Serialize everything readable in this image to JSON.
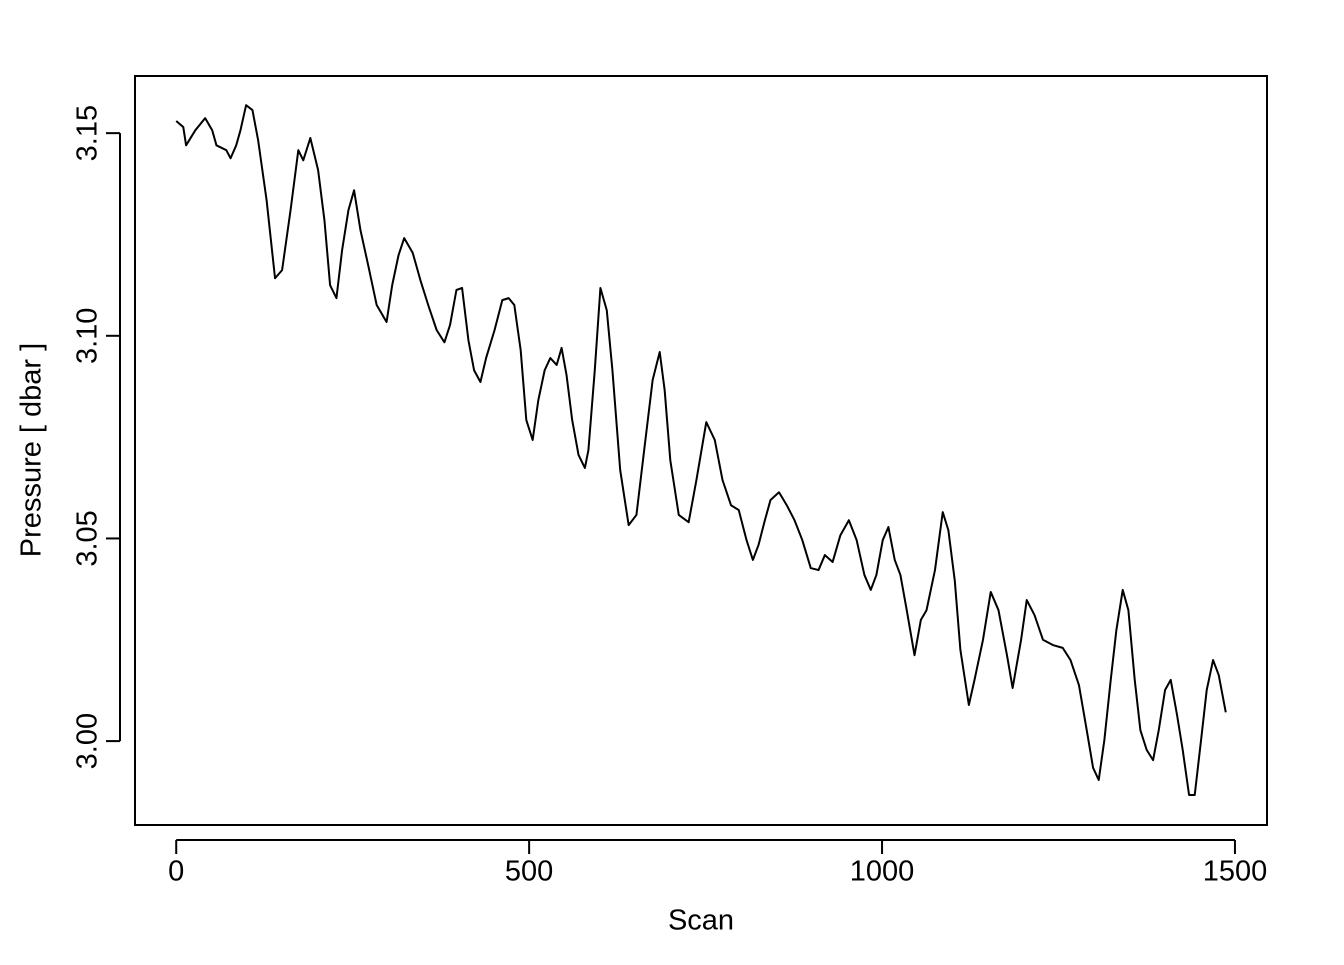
{
  "chart_data": {
    "type": "line",
    "x_label": "Scan",
    "y_label": "Pressure [ dbar ]",
    "color": "#000000",
    "xlim": [
      -58.4,
      1545.4
    ],
    "ylim": [
      2.9793,
      3.1641
    ],
    "xticks": [
      0,
      500,
      1000,
      1500
    ],
    "yticks": [
      {
        "value": 3,
        "label": "3.00"
      },
      3.05,
      {
        "value": 3.1,
        "label": "3.10"
      },
      3.15
    ],
    "x": [
      0,
      10,
      14,
      27,
      41,
      51,
      57,
      71,
      77,
      85,
      91,
      99,
      108,
      116,
      128,
      140,
      150,
      162,
      173,
      180,
      190,
      201,
      210,
      218,
      227,
      235,
      244,
      252,
      261,
      272,
      284,
      298,
      306,
      315,
      323,
      335,
      346,
      357,
      369,
      380,
      388,
      397,
      405,
      414,
      422,
      431,
      439,
      451,
      462,
      471,
      479,
      488,
      496,
      505,
      513,
      522,
      530,
      539,
      546,
      553,
      561,
      570,
      579,
      584,
      593,
      601,
      610,
      618,
      629,
      641,
      652,
      663,
      675,
      685,
      692,
      700,
      712,
      726,
      737,
      751,
      763,
      774,
      786,
      797,
      808,
      817,
      825,
      834,
      842,
      854,
      865,
      876,
      887,
      899,
      910,
      919,
      930,
      941,
      953,
      964,
      975,
      984,
      992,
      1001,
      1009,
      1018,
      1026,
      1035,
      1046,
      1055,
      1063,
      1075,
      1086,
      1094,
      1103,
      1111,
      1123,
      1131,
      1143,
      1154,
      1165,
      1177,
      1185,
      1197,
      1205,
      1216,
      1228,
      1242,
      1256,
      1267,
      1279,
      1290,
      1299,
      1307,
      1315,
      1324,
      1332,
      1341,
      1349,
      1358,
      1366,
      1375,
      1384,
      1392,
      1401,
      1409,
      1418,
      1426,
      1435,
      1443,
      1452,
      1460,
      1469,
      1477,
      1487
    ],
    "values": [
      3.153,
      3.1515,
      3.147,
      3.1507,
      3.1537,
      3.1507,
      3.147,
      3.1458,
      3.1438,
      3.147,
      3.1507,
      3.1569,
      3.1557,
      3.1483,
      3.1335,
      3.1142,
      3.1162,
      3.131,
      3.1458,
      3.1433,
      3.1488,
      3.1409,
      3.1285,
      3.1125,
      3.1093,
      3.1211,
      3.131,
      3.1359,
      3.1261,
      3.1174,
      3.1076,
      3.1034,
      3.1125,
      3.1199,
      3.1241,
      3.1205,
      3.1137,
      3.1076,
      3.1014,
      3.0984,
      3.1027,
      3.1113,
      3.1118,
      3.0989,
      3.0915,
      3.0886,
      3.0945,
      3.1014,
      3.1088,
      3.1093,
      3.1076,
      3.0965,
      3.0792,
      3.0743,
      3.0841,
      3.0915,
      3.0945,
      3.0928,
      3.097,
      3.0903,
      3.0792,
      3.0706,
      3.0674,
      3.0718,
      3.0915,
      3.1118,
      3.1063,
      3.0915,
      3.0669,
      3.0533,
      3.0558,
      3.0718,
      3.0891,
      3.096,
      3.0866,
      3.0693,
      3.0558,
      3.054,
      3.0644,
      3.0787,
      3.0743,
      3.0644,
      3.0582,
      3.057,
      3.0496,
      3.0447,
      3.0484,
      3.0545,
      3.0595,
      3.0614,
      3.0582,
      3.0545,
      3.0496,
      3.0427,
      3.0422,
      3.0459,
      3.0442,
      3.0508,
      3.0545,
      3.0496,
      3.041,
      3.0373,
      3.041,
      3.0496,
      3.0528,
      3.0447,
      3.041,
      3.0323,
      3.0212,
      3.0299,
      3.0323,
      3.0422,
      3.0565,
      3.052,
      3.0397,
      3.0225,
      3.0089,
      3.0151,
      3.025,
      3.0368,
      3.0323,
      3.0212,
      3.0131,
      3.025,
      3.0348,
      3.0311,
      3.025,
      3.0237,
      3.023,
      3.02,
      3.0138,
      3.0027,
      2.9934,
      2.9904,
      3.0003,
      3.0151,
      3.0274,
      3.0373,
      3.0323,
      3.0151,
      3.0027,
      2.9978,
      2.9953,
      3.0027,
      3.0126,
      3.0151,
      3.0064,
      2.9978,
      2.9867,
      2.9867,
      3.0003,
      3.0126,
      3.02,
      3.0163,
      3.0071
    ]
  }
}
